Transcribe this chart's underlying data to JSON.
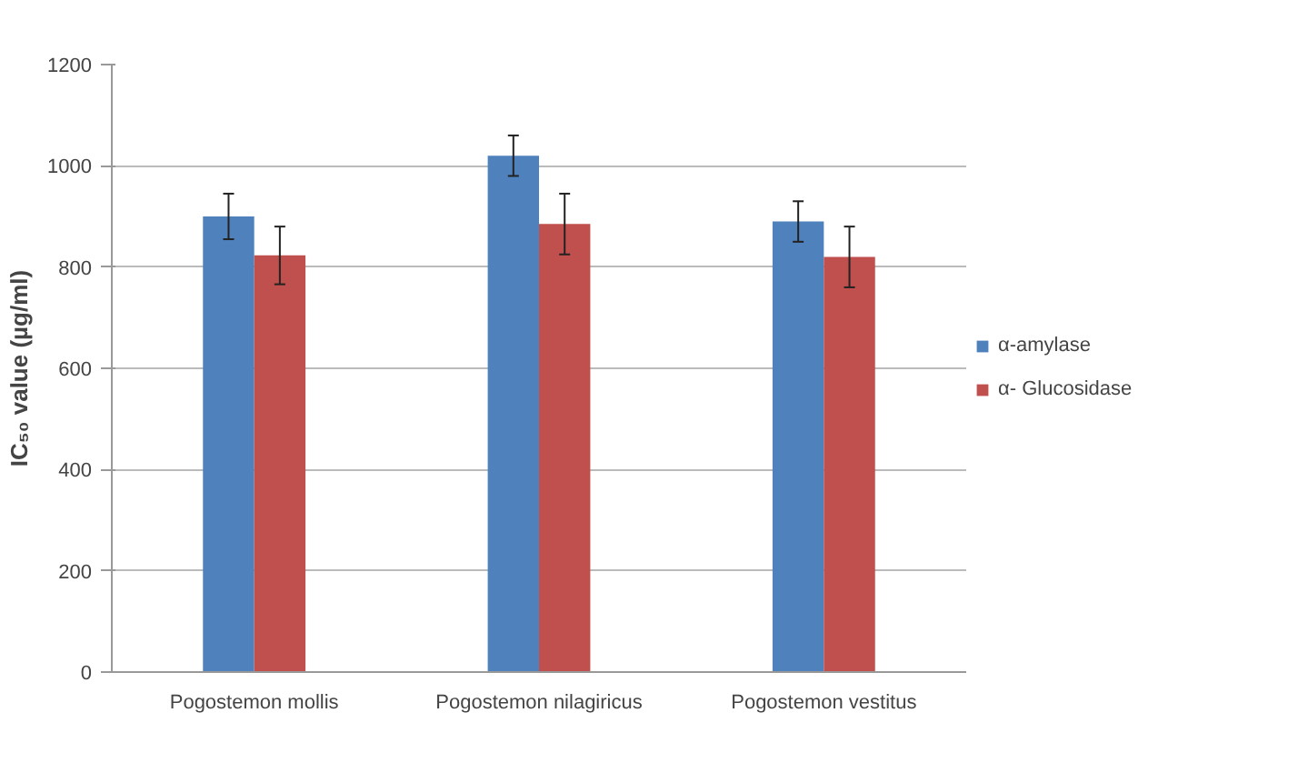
{
  "chart_data": {
    "type": "bar",
    "ylabel": "IC₅₀ value (µg/ml)",
    "categories": [
      "Pogostemon mollis",
      "Pogostemon nilagiricus",
      "Pogostemon vestitus"
    ],
    "series": [
      {
        "name": "α-amylase",
        "color": "#4f81bd",
        "values": [
          900,
          1020,
          890
        ],
        "errors": [
          45,
          40,
          40
        ]
      },
      {
        "name": "α- Glucosidase",
        "color": "#c0504d",
        "values": [
          823,
          885,
          820
        ],
        "errors": [
          57,
          60,
          60
        ]
      }
    ],
    "ylim": [
      0,
      1200
    ],
    "yticks": [
      0,
      200,
      400,
      600,
      800,
      1000,
      1200
    ],
    "grid": "y",
    "legend": "right"
  }
}
